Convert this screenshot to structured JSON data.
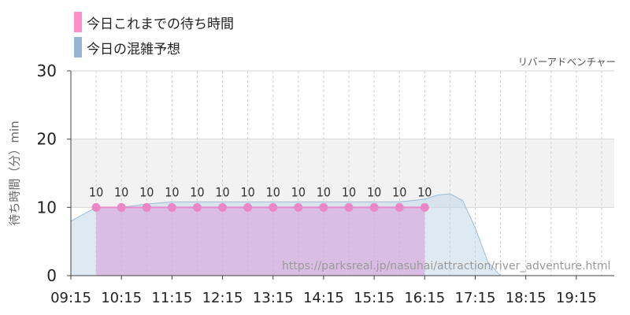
{
  "legend": {
    "actual": {
      "label": "今日これまでの待ち時間",
      "color": "#ff8fc8"
    },
    "forecast": {
      "label": "今日の混雑予想",
      "color": "#93b5d3"
    }
  },
  "attraction_name": "リバーアドベンチャー",
  "source_url": "https://parksreal.jp/nasuhai/attraction/river_adventure.html",
  "chart_data": {
    "type": "area",
    "ylabel": "待ち時間（分）min",
    "ylim": [
      0,
      30
    ],
    "yticks": [
      0,
      10,
      20,
      30
    ],
    "xlim": [
      "09:15",
      "20:00"
    ],
    "xticks": [
      "09:15",
      "10:15",
      "11:15",
      "12:15",
      "13:15",
      "14:15",
      "15:15",
      "16:15",
      "17:15",
      "18:15",
      "19:15"
    ],
    "band": {
      "from": 10,
      "to": 20,
      "color": "#f2f2f2"
    },
    "series": [
      {
        "name": "今日これまでの待ち時間",
        "color": "#e88ccf",
        "x": [
          "09:45",
          "10:15",
          "10:45",
          "11:15",
          "11:45",
          "12:15",
          "12:45",
          "13:15",
          "13:45",
          "14:15",
          "14:45",
          "15:15",
          "15:45",
          "16:15"
        ],
        "values": [
          10,
          10,
          10,
          10,
          10,
          10,
          10,
          10,
          10,
          10,
          10,
          10,
          10,
          10
        ]
      },
      {
        "name": "今日の混雑予想",
        "color": "#bcd3e8",
        "x": [
          "09:15",
          "09:45",
          "10:15",
          "10:45",
          "11:15",
          "11:45",
          "12:15",
          "12:45",
          "13:15",
          "13:45",
          "14:15",
          "14:45",
          "15:15",
          "15:45",
          "16:15",
          "16:30",
          "16:45",
          "17:00",
          "17:15",
          "17:30",
          "17:45",
          "18:00",
          "18:30",
          "19:00",
          "19:30",
          "20:00"
        ],
        "values": [
          8,
          10,
          10,
          10.5,
          10.8,
          10.8,
          10.8,
          10.8,
          10.8,
          10.8,
          10.8,
          10.8,
          10.8,
          10.8,
          11.2,
          11.8,
          12,
          11,
          7,
          2,
          0,
          0,
          0,
          0,
          0,
          0
        ]
      }
    ]
  }
}
